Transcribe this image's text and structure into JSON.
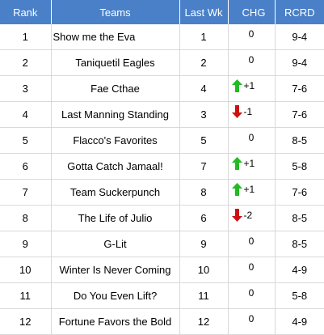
{
  "table": {
    "headers": {
      "rank": "Rank",
      "teams": "Teams",
      "last_wk": "Last Wk",
      "chg": "CHG",
      "rcrd": "RCRD"
    },
    "rows": [
      {
        "rank": "1",
        "team": "Show me the Eva",
        "last_wk": "1",
        "chg": "0",
        "direction": "none",
        "rcrd": "9-4"
      },
      {
        "rank": "2",
        "team": "Taniquetil Eagles",
        "last_wk": "2",
        "chg": "0",
        "direction": "none",
        "rcrd": "9-4"
      },
      {
        "rank": "3",
        "team": "Fae Cthae",
        "last_wk": "4",
        "chg": "+1",
        "direction": "up",
        "rcrd": "7-6"
      },
      {
        "rank": "4",
        "team": "Last Manning Standing",
        "last_wk": "3",
        "chg": "-1",
        "direction": "down",
        "rcrd": "7-6"
      },
      {
        "rank": "5",
        "team": "Flacco's Favorites",
        "last_wk": "5",
        "chg": "0",
        "direction": "none",
        "rcrd": "8-5"
      },
      {
        "rank": "6",
        "team": "Gotta Catch Jamaal!",
        "last_wk": "7",
        "chg": "+1",
        "direction": "up",
        "rcrd": "5-8"
      },
      {
        "rank": "7",
        "team": "Team Suckerpunch",
        "last_wk": "8",
        "chg": "+1",
        "direction": "up",
        "rcrd": "7-6"
      },
      {
        "rank": "8",
        "team": "The Life of Julio",
        "last_wk": "6",
        "chg": "-2",
        "direction": "down",
        "rcrd": "8-5"
      },
      {
        "rank": "9",
        "team": "G-Lit",
        "last_wk": "9",
        "chg": "0",
        "direction": "none",
        "rcrd": "8-5"
      },
      {
        "rank": "10",
        "team": "Winter Is Never Coming",
        "last_wk": "10",
        "chg": "0",
        "direction": "none",
        "rcrd": "4-9"
      },
      {
        "rank": "11",
        "team": "Do You Even Lift?",
        "last_wk": "11",
        "chg": "0",
        "direction": "none",
        "rcrd": "5-8"
      },
      {
        "rank": "12",
        "team": "Fortune Favors the Bold",
        "last_wk": "12",
        "chg": "0",
        "direction": "none",
        "rcrd": "4-9"
      }
    ],
    "colors": {
      "header_bg": "#4a80c8",
      "header_text": "#ffffff",
      "up_arrow": "#22bb22",
      "down_arrow": "#cc1111",
      "gridline": "#d9d9d9"
    },
    "icons": {
      "up": "arrow-up-icon",
      "down": "arrow-down-icon"
    }
  }
}
